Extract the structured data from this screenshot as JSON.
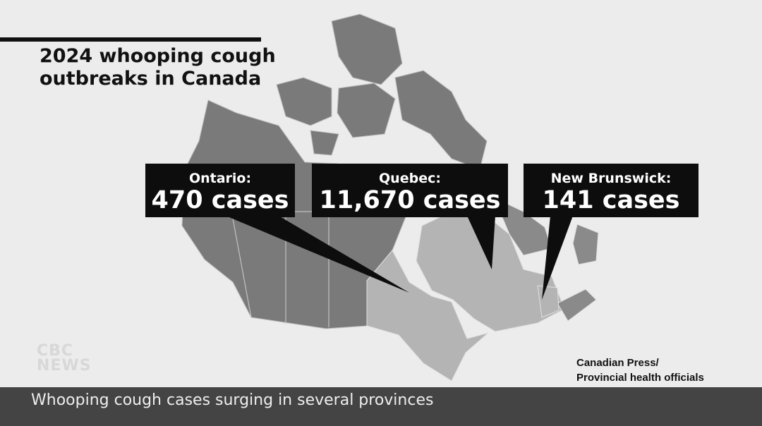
{
  "title": "2024 whooping cough outbreaks in Canada",
  "title_lines": [
    "2024 whooping cough",
    "outbreaks in Canada"
  ],
  "callouts": [
    {
      "label": "Ontario:",
      "value": "470 cases"
    },
    {
      "label": "Quebec:",
      "value": "11,670 cases"
    },
    {
      "label": "New Brunswick:",
      "value": "141 cases"
    }
  ],
  "source_lines": [
    "Canadian Press/",
    "Provincial health officials"
  ],
  "logo": "CBC NEWS",
  "logo_lines": [
    "CBC",
    "NEWS"
  ],
  "ticker": "Whooping cough cases surging in several provinces",
  "colors": {
    "background": "#ececec",
    "unaffected_region": "#7a7a7a",
    "highlighted_province": "#b4b4b4",
    "callout": "#0d0d0d",
    "ticker": "#444444"
  }
}
